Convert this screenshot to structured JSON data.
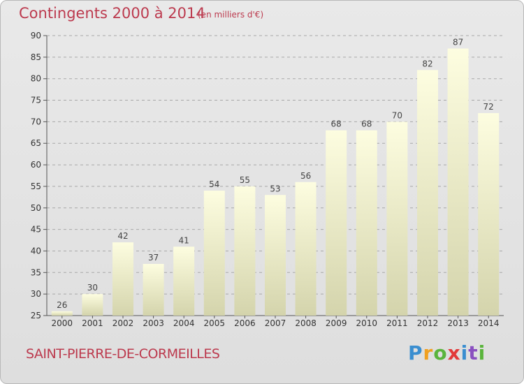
{
  "header": {
    "title": "Contingents 2000 à 2014",
    "subtitle": "(en milliers d'€)"
  },
  "footer": {
    "commune": "SAINT-PIERRE-DE-CORMEILLES",
    "logo_text": "Proxiti"
  },
  "colors": {
    "title": "#bc3a4e",
    "bar_top": "#fdfde0",
    "bar_bottom": "#d4d4ac"
  },
  "chart_data": {
    "type": "bar",
    "title": "Contingents 2000 à 2014",
    "xlabel": "",
    "ylabel": "",
    "categories": [
      "2000",
      "2001",
      "2002",
      "2003",
      "2004",
      "2005",
      "2006",
      "2007",
      "2008",
      "2009",
      "2010",
      "2011",
      "2012",
      "2013",
      "2014"
    ],
    "values": [
      26,
      30,
      42,
      37,
      41,
      54,
      55,
      53,
      56,
      68,
      68,
      70,
      82,
      87,
      72
    ],
    "data_labels": [
      "26",
      "30",
      "42",
      "37",
      "41",
      "54",
      "55",
      "53",
      "56",
      "68",
      "68",
      "70",
      "82",
      "87",
      "72"
    ],
    "ylim": [
      25,
      90
    ],
    "yticks": [
      "25",
      "30",
      "35",
      "40",
      "45",
      "50",
      "55",
      "60",
      "65",
      "70",
      "75",
      "80",
      "85",
      "90"
    ],
    "grid": true
  }
}
